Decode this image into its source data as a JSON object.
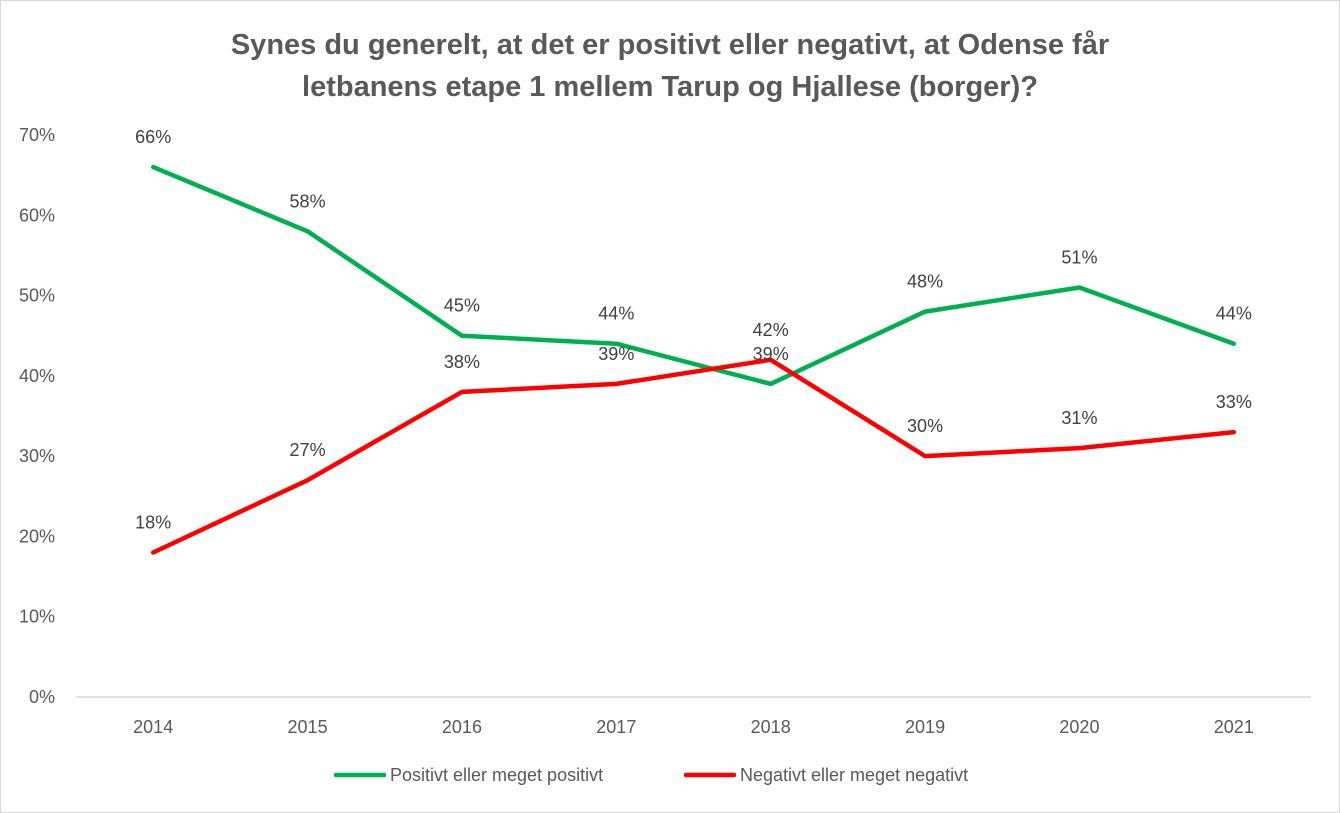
{
  "title_lines": [
    "Synes du generelt, at det er positivt eller negativt, at Odense får",
    "letbanens etape 1 mellem Tarup og Hjallese (borger)?"
  ],
  "chart_data": {
    "type": "line",
    "title": "Synes du generelt, at det er positivt eller negativt, at Odense får letbanens etape 1 mellem Tarup og Hjallese (borger)?",
    "categories": [
      "2014",
      "2015",
      "2016",
      "2017",
      "2018",
      "2019",
      "2020",
      "2021"
    ],
    "series": [
      {
        "name": "Positivt eller meget positivt",
        "color": "#00b050",
        "values": [
          66,
          58,
          45,
          44,
          39,
          48,
          51,
          44
        ],
        "labels": [
          "66%",
          "58%",
          "45%",
          "44%",
          "39%",
          "48%",
          "51%",
          "44%"
        ]
      },
      {
        "name": "Negativt eller meget negativt",
        "color": "#ff0000",
        "values": [
          18,
          27,
          38,
          39,
          42,
          30,
          31,
          33
        ],
        "labels": [
          "18%",
          "27%",
          "38%",
          "39%",
          "42%",
          "30%",
          "31%",
          "33%"
        ]
      }
    ],
    "yticks": [
      "0%",
      "10%",
      "20%",
      "30%",
      "40%",
      "50%",
      "60%",
      "70%"
    ],
    "ylim": [
      0,
      70
    ],
    "grid": false,
    "legend_position": "bottom"
  }
}
